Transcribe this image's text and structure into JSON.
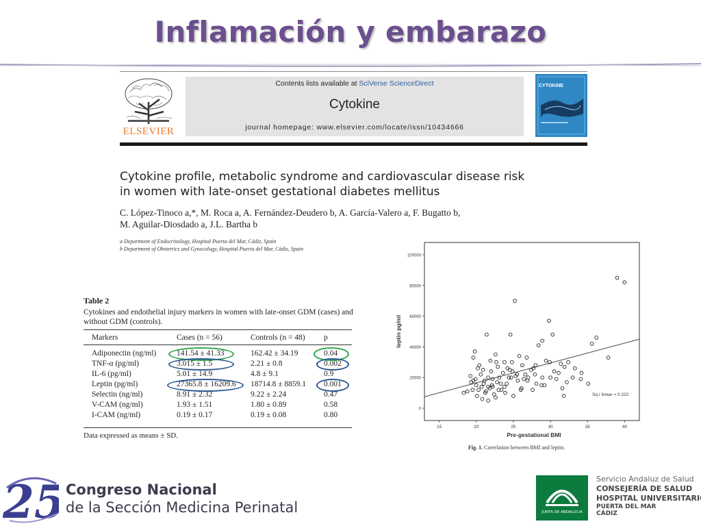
{
  "slide": {
    "title": "Inflamación y embarazo"
  },
  "journal_header": {
    "contents_prefix": "Contents lists available at ",
    "contents_link": "SciVerse ScienceDirect",
    "journal_name": "Cytokine",
    "homepage": "journal homepage: www.elsevier.com/locate/issn/10434666",
    "publisher": "ELSEVIER",
    "cover_title": "CYTOKINE"
  },
  "paper": {
    "title_lines": [
      "Cytokine profile, metabolic syndrome and cardiovascular disease risk",
      "in women with late-onset gestational diabetes mellitus"
    ],
    "author_lines": [
      "C. López-Tinoco a,*, M. Roca a, A. Fernández-Deudero b, A. García-Valero a, F. Bugatto b,",
      "M. Aguilar-Diosdado a, J.L. Bartha b"
    ],
    "affiliations": [
      "a Department of Endocrinology, Hospital Puerta del Mar, Cádiz, Spain",
      "b Department of Obstetrics and Gynecology, Hospital Puerta del Mar, Cádiz, Spain"
    ]
  },
  "table": {
    "label": "Table 2",
    "caption_lines": [
      "Cytokines and endothelial injury markers in women with late-onset GDM (cases) and",
      "without GDM (controls)."
    ],
    "headers": [
      "Markers",
      "Cases (n = 56)",
      "Controls (n = 48)",
      "p"
    ],
    "rows": [
      [
        "Adiponectin (ng/ml)",
        "141.54 ± 41.33",
        "162.42 ± 34.19",
        "0.04"
      ],
      [
        "TNF-α (pg/ml)",
        "3.015 ± 1.5",
        "2.21 ± 0.8",
        "0.002"
      ],
      [
        "IL-6 (pg/ml)",
        "5.01 ± 14.9",
        "4.8 ± 9.1",
        "0.9"
      ],
      [
        "Leptin (pg/ml)",
        "27365.8 ± 16209.6",
        "18714.8 ± 8859.1",
        "0.001"
      ],
      [
        "Selectin (ng/ml)",
        "8.91 ± 2.32",
        "9.22 ± 2.24",
        "0.47"
      ],
      [
        "V-CAM (ng/ml)",
        "1.93 ± 1.51",
        "1.80 ± 0.89",
        "0.58"
      ],
      [
        "I-CAM (ng/ml)",
        "0.19 ± 0.17",
        "0.19 ± 0.08",
        "0.80"
      ]
    ],
    "note": "Data expressed as means ± SD.",
    "highlight_colors": {
      "green": "#2fa84f",
      "blue": "#2e5a93"
    }
  },
  "figure": {
    "caption_label": "Fig. 1.",
    "caption_text": " Correlation between BMI and leptin."
  },
  "chart_data": {
    "type": "scatter",
    "xlabel": "Pre-gestational BMI",
    "ylabel": "leptin pg/ml",
    "xlim": [
      13,
      42
    ],
    "ylim": [
      -8000,
      108000
    ],
    "xticks": [
      15,
      20,
      25,
      30,
      35,
      40
    ],
    "yticks": [
      0,
      20000,
      40000,
      60000,
      80000,
      100000
    ],
    "ytick_labels": [
      "0",
      "20000",
      "40000",
      "60000",
      "80000",
      "100000"
    ],
    "annotation": "Sq r linear = 0.222",
    "fit_line": {
      "x": [
        13,
        42
      ],
      "y": [
        7500,
        45000
      ]
    },
    "points": {
      "x": [
        19.3,
        19.6,
        19.2,
        20.0,
        20.3,
        20.6,
        21.1,
        21.6,
        22.2,
        22.8,
        23.3,
        23.8,
        24.4,
        21.3,
        21.8,
        22.4,
        20.4,
        19.6,
        19.8,
        20.2,
        21.4,
        22.6,
        23.6,
        24.6,
        24.8,
        25.2,
        25.8,
        26.2,
        26.8,
        27.4,
        27.9,
        28.4,
        28.9,
        29.4,
        29.8,
        30.3,
        30.8,
        31.4,
        31.9,
        32.4,
        33.0,
        34.2,
        35.6,
        35.1,
        36.2,
        37.8,
        39.0,
        40.0,
        25.3,
        24.2,
        21.6,
        21.2,
        20.8,
        22.1,
        23.0,
        23.9,
        25.6,
        26.6,
        27.7,
        28.9,
        29.9,
        31.1,
        32.2,
        33.3,
        26.1,
        24.1,
        23.1,
        22.6,
        22.0,
        21.6,
        20.9,
        20.1,
        19.5,
        18.8,
        18.3,
        21.9,
        22.9,
        24.5,
        25.5,
        26.9,
        27.6,
        28.8,
        30.5,
        31.8,
        21.0,
        22.2,
        23.4,
        24.7,
        26.4,
        28.1,
        29.2,
        31.6,
        30.0,
        34.1,
        24.9,
        25.0,
        20.7,
        19.9,
        22.7,
        23.8,
        26.0,
        27.0,
        28.0
      ],
      "y": [
        17000,
        18000,
        21000,
        15000,
        12000,
        22000,
        18000,
        20000,
        19000,
        17000,
        16000,
        14000,
        20000,
        11000,
        13000,
        9000,
        28000,
        33000,
        37000,
        26000,
        48000,
        35000,
        23000,
        48000,
        30000,
        70000,
        34000,
        28000,
        33000,
        25000,
        22000,
        41000,
        44000,
        31000,
        57000,
        48000,
        19000,
        29000,
        27000,
        30000,
        20000,
        23000,
        42000,
        16000,
        46000,
        33000,
        85000,
        82000,
        21000,
        26000,
        14000,
        10000,
        6000,
        15000,
        12000,
        10000,
        18000,
        22000,
        26000,
        20000,
        30000,
        23000,
        17000,
        26000,
        13000,
        16000,
        20000,
        7000,
        24000,
        5000,
        25000,
        8000,
        12000,
        11000,
        10000,
        31000,
        27000,
        25000,
        22000,
        18000,
        12000,
        15000,
        24000,
        8000,
        16000,
        14000,
        12000,
        20000,
        19000,
        16000,
        15000,
        13000,
        20000,
        19000,
        24000,
        8000,
        14000,
        19000,
        30000,
        30000,
        12000,
        20000,
        28000
      ]
    }
  },
  "footer": {
    "congress_number": "25",
    "congress_line1": "Congreso Nacional",
    "congress_line2": "de la Sección Medicina Perinatal",
    "junta_caption": "JUNTA DE ANDALUCIA",
    "sas_line1": "Servicio Andaluz de Salud",
    "sas_line2": "CONSEJERÍA DE SALUD",
    "sas_line3": "HOSPITAL UNIVERSITARIO",
    "sas_line4": "PUERTA DEL MAR",
    "sas_line5": "CÁDIZ"
  }
}
